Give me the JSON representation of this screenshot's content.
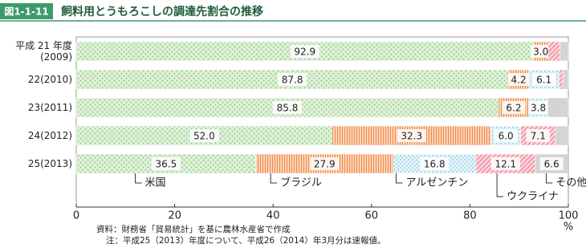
{
  "chart_data": {
    "type": "stacked_barh",
    "figure_label": "図1-1-11",
    "title": "飼料用とうもろこしの調達先割合の推移",
    "categories": [
      "平成 21 年度\n(2009)",
      "22(2010)",
      "23(2011)",
      "24(2012)",
      "25(2013)"
    ],
    "series": [
      {
        "name": "米国",
        "color": "#8ccb7e",
        "values": [
          92.9,
          87.8,
          85.8,
          52.0,
          36.5
        ],
        "value_labels": [
          "92.9",
          "87.8",
          "85.8",
          "52.0",
          "36.5"
        ]
      },
      {
        "name": "ブラジル",
        "color": "#f08a4b",
        "values": [
          3.0,
          4.2,
          6.2,
          32.3,
          27.9
        ],
        "value_labels": [
          "3.0",
          "4.2",
          "6.2",
          "32.3",
          "27.9"
        ]
      },
      {
        "name": "アルゼンチン",
        "color": "#7cc6dc",
        "values": [
          null,
          6.1,
          3.8,
          6.0,
          16.8
        ],
        "value_labels": [
          null,
          "6.1",
          "3.8",
          "6.0",
          "16.8"
        ]
      },
      {
        "name": "ウクライナ",
        "color": "#f28ea0",
        "values": [
          2.4,
          0.8,
          null,
          7.1,
          12.1
        ],
        "value_labels": [
          null,
          null,
          null,
          "7.1",
          "12.1"
        ]
      },
      {
        "name": "その他",
        "color": "#d4d4d4",
        "values": [
          1.7,
          1.1,
          4.2,
          2.6,
          6.6
        ],
        "value_labels": [
          null,
          null,
          null,
          null,
          "6.6"
        ]
      }
    ],
    "xlim": [
      0,
      100
    ],
    "xticks": [
      0,
      20,
      40,
      60,
      80,
      100
    ],
    "x_unit": "%",
    "notes": [
      "資料：財務省「貿易統計」を基に農林水産省で作成",
      "注：平成25（2013）年度について、平成26（2014）年3月分は速報値。"
    ]
  }
}
